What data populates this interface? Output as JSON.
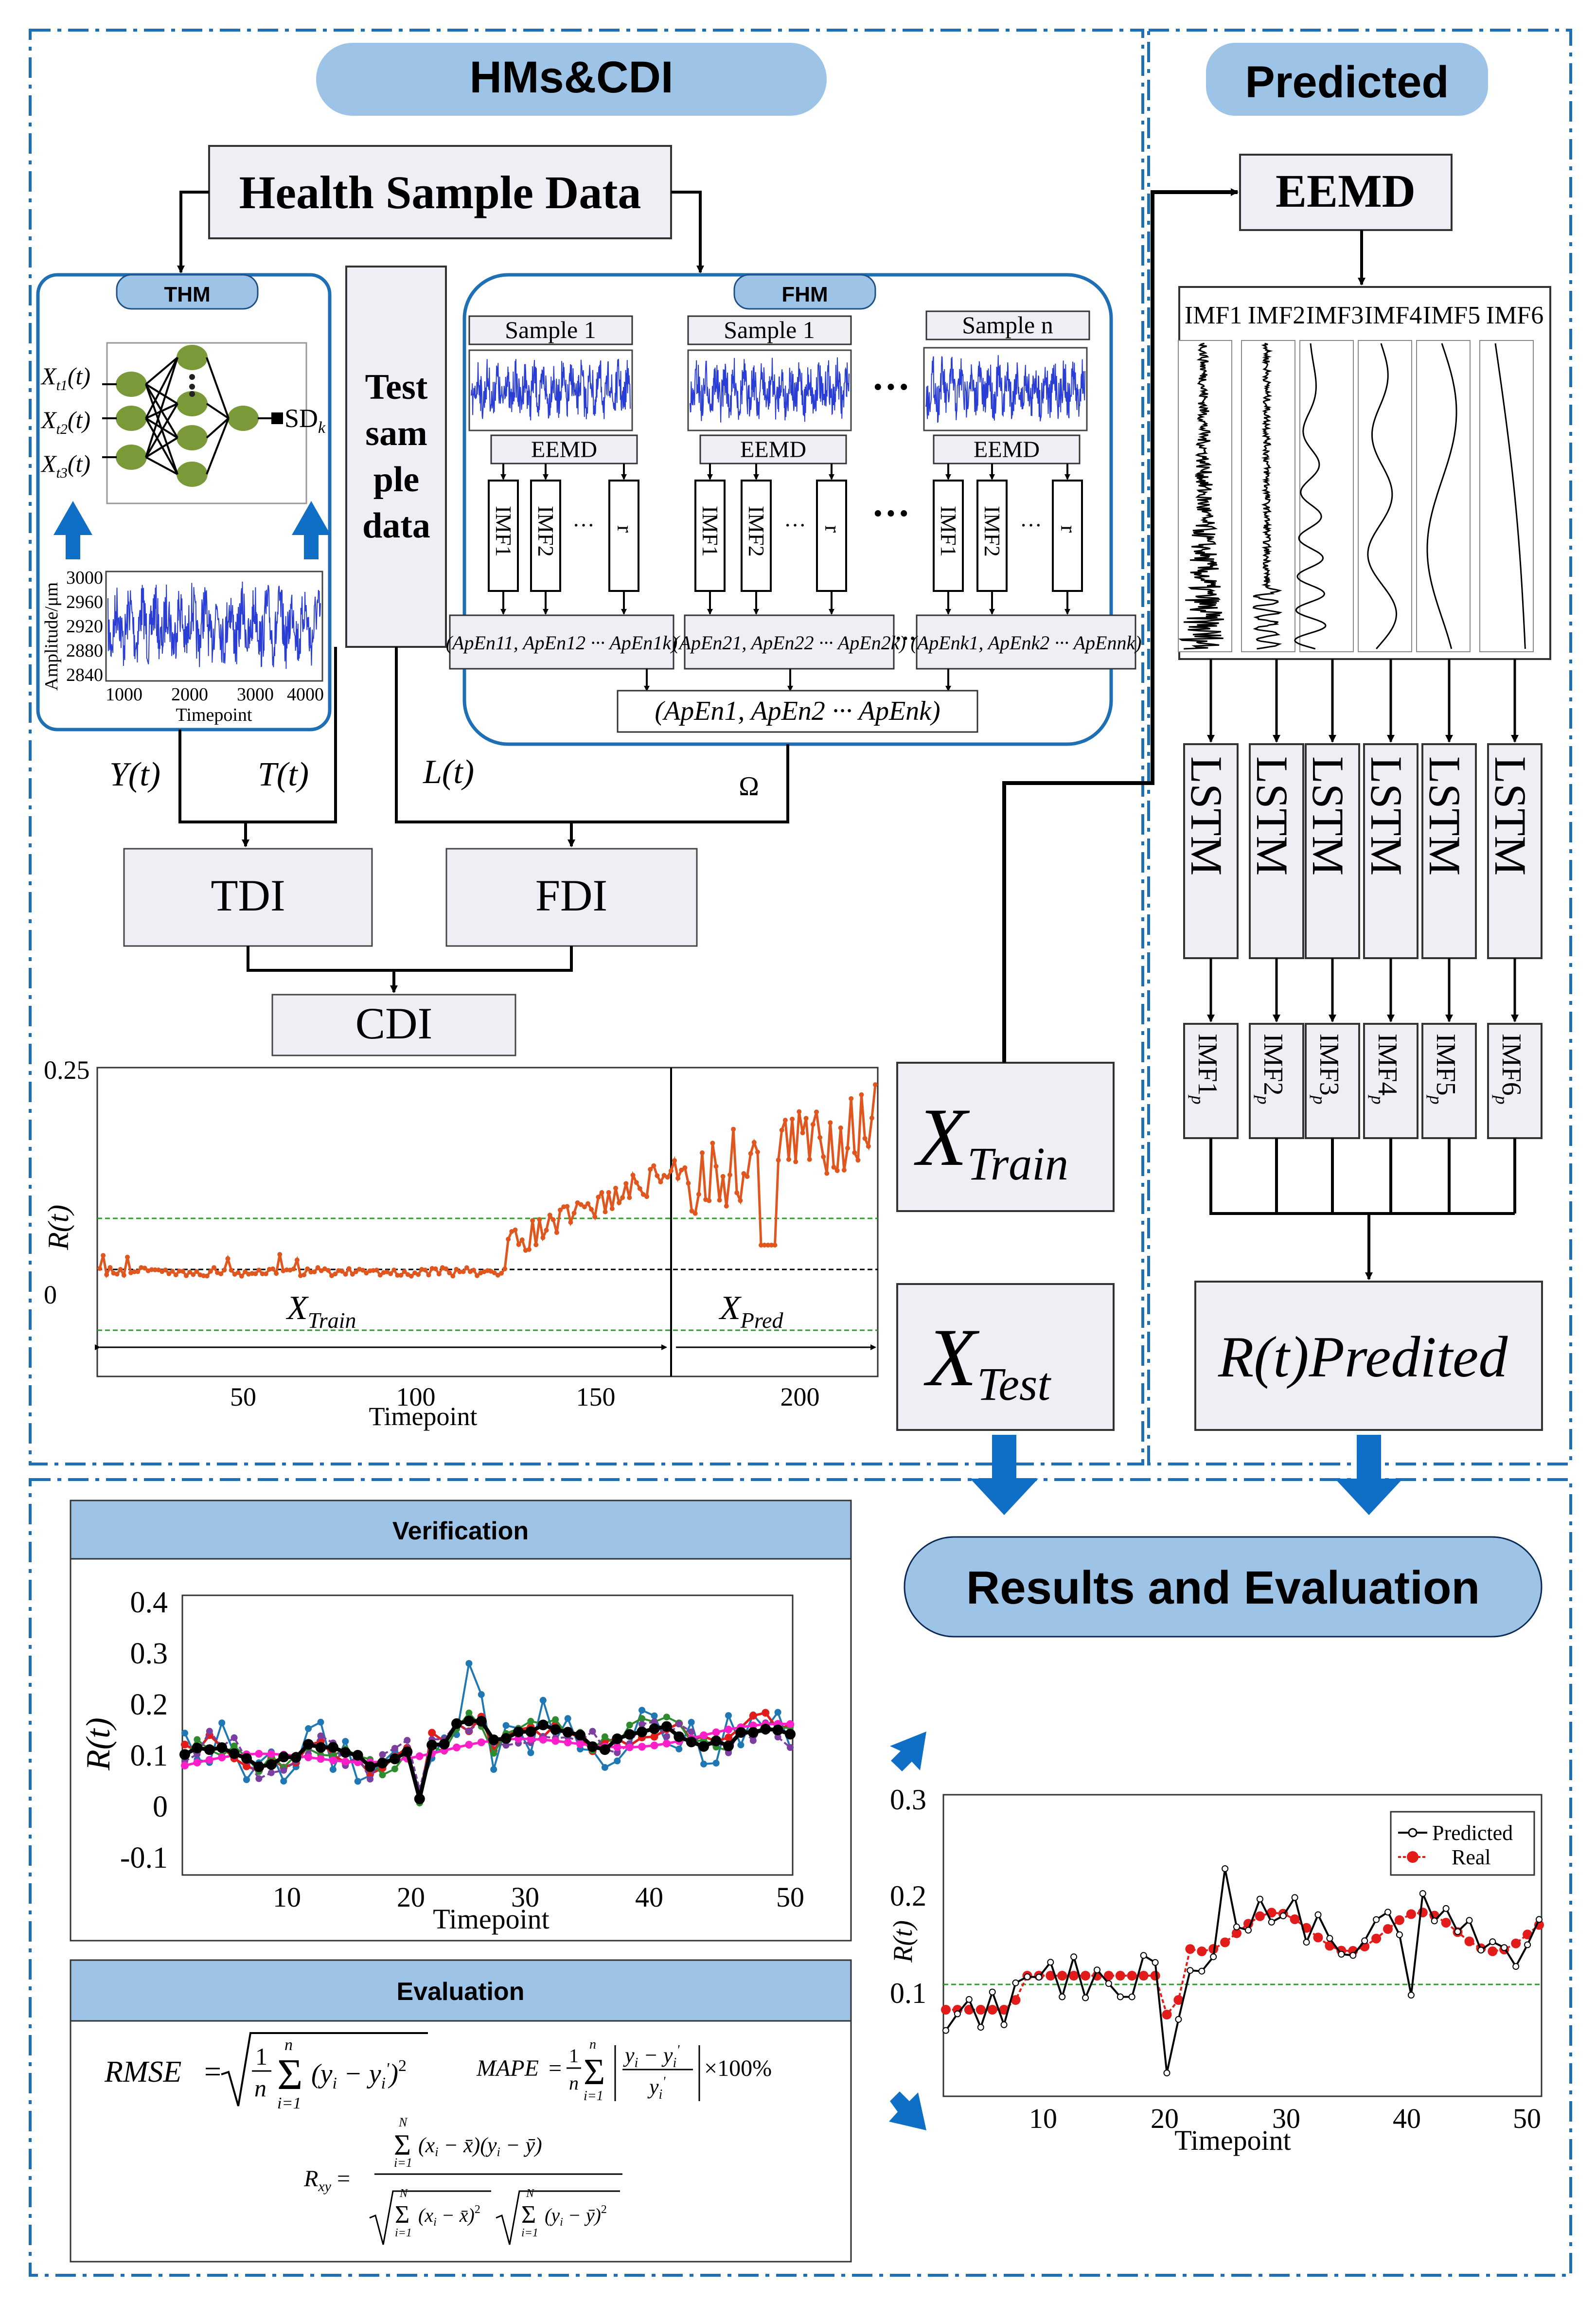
{
  "panels": {
    "hms_cdi": "HMs&CDI",
    "predicted": "Predicted",
    "results": "Results and Evaluation",
    "verification": "Verification",
    "evaluation": "Evaluation"
  },
  "hms": {
    "health_sample_data": "Health Sample Data",
    "thm_label": "THM",
    "fhm_label": "FHM",
    "test_sample_data": [
      "Test",
      "sam",
      "ple",
      "data"
    ],
    "thm_inputs": [
      "X",
      "X",
      "X"
    ],
    "thm_input_subs": [
      "t1",
      "t2",
      "t3"
    ],
    "thm_input_suffix": "(t)",
    "thm_output": "SD",
    "thm_output_sub": "k",
    "amp_ylabel": "Amplitude/μm",
    "amp_yticks": [
      "3000",
      "2960",
      "2920",
      "2880",
      "2840"
    ],
    "amp_xticks": [
      "1000",
      "2000",
      "3000",
      "4000"
    ],
    "amp_xlabel": "Timepoint",
    "samples": [
      "Sample 1",
      "Sample 1",
      "Sample n"
    ],
    "eemd": "EEMD",
    "imf1": "IMF1",
    "imf2": "IMF2",
    "residual": "r",
    "ellipsis": "···",
    "apen_sets": [
      "(ApEn11, ApEn12 ··· ApEn1k)",
      "(ApEn21, ApEn22 ··· ApEn2k)",
      "(ApEnk1, ApEnk2 ··· ApEnnk)"
    ],
    "apen_total": "(ApEn1, ApEn2 ··· ApEnk)",
    "y_t": "Y(t)",
    "t_t": "T(t)",
    "l_t": "L(t)",
    "omega": "Ω",
    "tdi": "TDI",
    "fdi": "FDI",
    "cdi": "CDI"
  },
  "rt_chart": {
    "ylabel": "R(t)",
    "yticks": [
      "0.25",
      "0"
    ],
    "xticks": [
      "50",
      "100",
      "150",
      "200"
    ],
    "xlabel": "Timepoint",
    "x_train": "X",
    "x_train_sub": "Train",
    "x_pred": "X",
    "x_pred_sub": "Pred"
  },
  "xtrain_box": {
    "main": "X",
    "sub": "Train"
  },
  "xtest_box": {
    "main": "X",
    "sub": "Test"
  },
  "predicted": {
    "eemd": "EEMD",
    "imfs": [
      "IMF1",
      "IMF2",
      "IMF3",
      "IMF4",
      "IMF5",
      "IMF6"
    ],
    "lstm": "LSTM",
    "imfp": [
      "IMF1",
      "IMF2",
      "IMF3",
      "IMF4",
      "IMF5",
      "IMF6"
    ],
    "imfp_sub": "p",
    "result_main": "R(t)Pr",
    "result_tail": "edited"
  },
  "verification_chart": {
    "ylabel": "R(t)",
    "yticks": [
      "0.4",
      "0.3",
      "0.2",
      "0.1",
      "0",
      "-0.1"
    ],
    "xticks": [
      "10",
      "20",
      "30",
      "40",
      "50"
    ],
    "xlabel": "Timepoint"
  },
  "evaluation": {
    "rmse": "RMSE",
    "mape": "MAPE",
    "rxy": "R"
  },
  "results_chart": {
    "ylabel": "R(t)",
    "yticks": [
      "0.3",
      "0.2",
      "0.1"
    ],
    "xticks": [
      "10",
      "20",
      "30",
      "40",
      "50"
    ],
    "xlabel": "Timepoint",
    "legend": [
      "Predicted",
      "Real"
    ]
  },
  "colors": {
    "panel_border": "#1f6fb5",
    "pill": "#9dc3e6",
    "box_fill": "#eeeef4",
    "arrow_blue": "#0f6fc6",
    "signal_blue": "#2a3ed6",
    "rt_orange": "#e0561f",
    "green_dash": "#2a9a2a"
  }
}
